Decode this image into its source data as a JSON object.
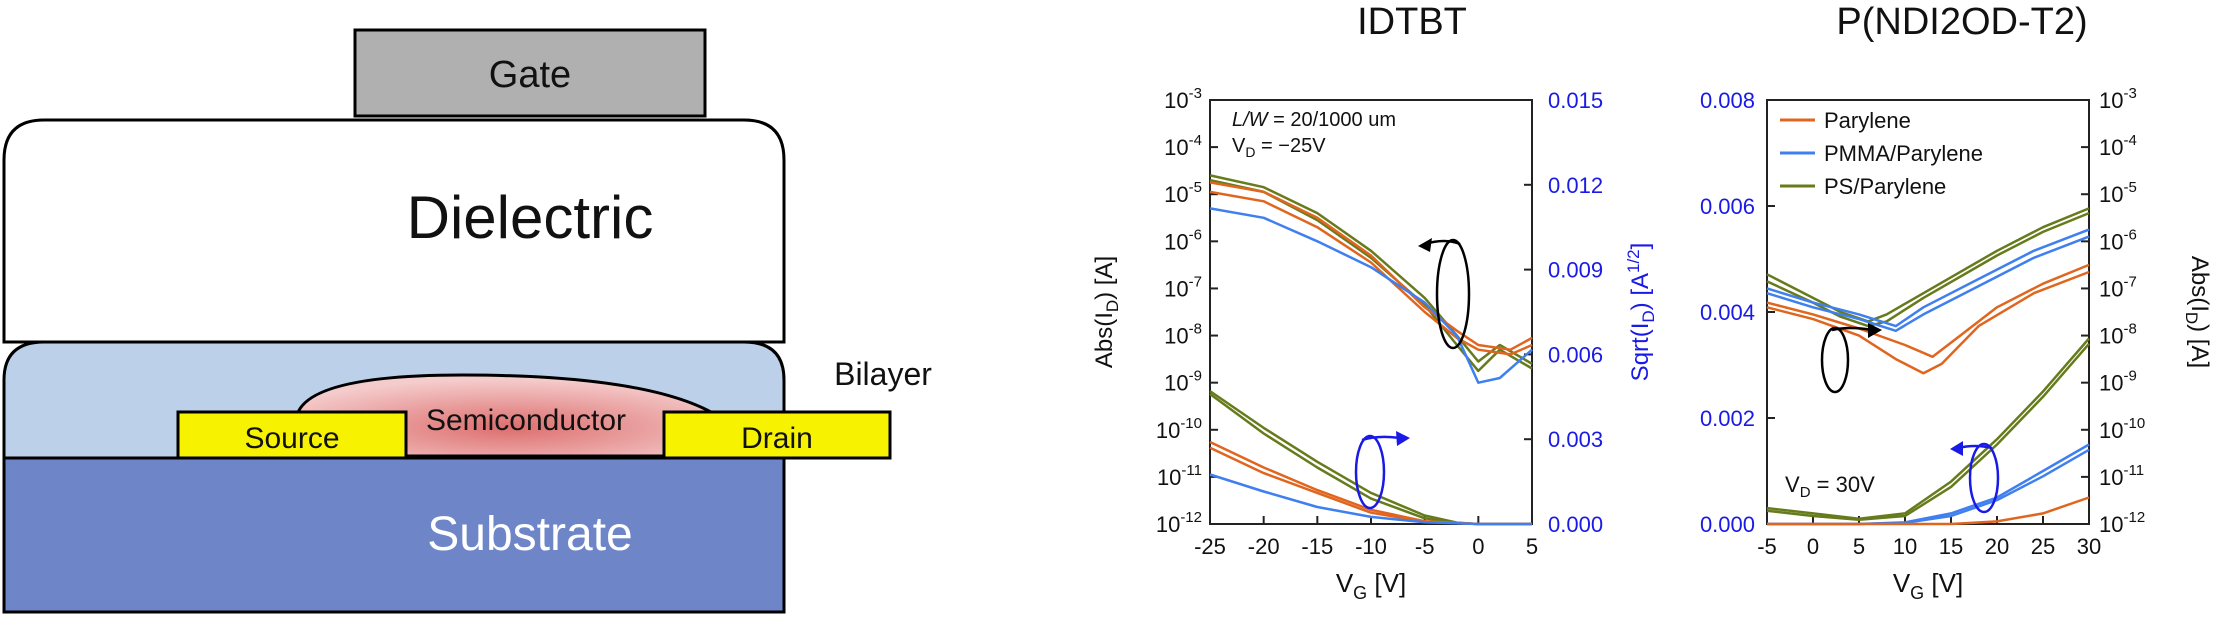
{
  "device": {
    "gate": "Gate",
    "dielectric": "Dielectric",
    "bilayer": "Bilayer",
    "source": "Source",
    "semiconductor": "Semiconductor",
    "drain": "Drain",
    "substrate": "Substrate",
    "colors": {
      "gate": "#b0b0b0",
      "dielectric": "#ffffff",
      "bilayer": "#bcd0ea",
      "electrode": "#f7f200",
      "semiconductor": "#dd6e6e",
      "substrate": "#6e86c8",
      "substrate_text": "#ffffff"
    }
  },
  "chart_data": [
    {
      "type": "line",
      "title": "IDTBT",
      "xlabel": "V",
      "xlabel_sub": "G",
      "xlabel_unit": " [V]",
      "ylabel_left": "Abs(I",
      "ylabel_left_sub": "D",
      "ylabel_left_end": ") [A]",
      "ylabel_right": "Sqrt(I",
      "ylabel_right_sub": "D",
      "ylabel_right_mid": ") [A",
      "ylabel_right_sup": "1/2",
      "ylabel_right_end": "]",
      "xlim": [
        -25,
        5
      ],
      "xticks": [
        "-25",
        "-20",
        "-15",
        "-10",
        "-5",
        "0",
        "5"
      ],
      "left_log_exponents": [
        -3,
        -4,
        -5,
        -6,
        -7,
        -8,
        -9,
        -10,
        -11,
        -12
      ],
      "right_ticks": [
        "0.015",
        "0.012",
        "0.009",
        "0.006",
        "0.003",
        "0.000"
      ],
      "right_ylim": [
        0,
        0.015
      ],
      "annotations": {
        "lw_italic": "L/W",
        "lw_rest": " = 20/1000 um",
        "vd_main": "V",
        "vd_sub": "D",
        "vd_val": " = −25V"
      },
      "curve_colors": [
        "#e0661f",
        "#3f7fef",
        "#667b1c"
      ]
    },
    {
      "type": "line",
      "title": "P(NDI2OD-T2)",
      "xlabel": "V",
      "xlabel_sub": "G",
      "xlabel_unit": " [V]",
      "ylabel_right": "Abs(I",
      "ylabel_right_sub": "D",
      "ylabel_right_end": ") [A]",
      "xlim": [
        -5,
        30
      ],
      "xticks": [
        "-5",
        "0",
        "5",
        "10",
        "15",
        "20",
        "25",
        "30"
      ],
      "left_ticks": [
        "0.008",
        "0.006",
        "0.004",
        "0.002",
        "0.000"
      ],
      "right_log_exponents": [
        -3,
        -4,
        -5,
        -6,
        -7,
        -8,
        -9,
        -10,
        -11,
        -12
      ],
      "legend": [
        "Parylene",
        "PMMA/Parylene",
        "PS/Parylene"
      ],
      "legend_colors": [
        "#e0661f",
        "#3f7fef",
        "#667b1c"
      ],
      "legend_position": "top-left",
      "annotations": {
        "vd_main": "V",
        "vd_sub": "D",
        "vd_val": " = 30V"
      }
    }
  ]
}
